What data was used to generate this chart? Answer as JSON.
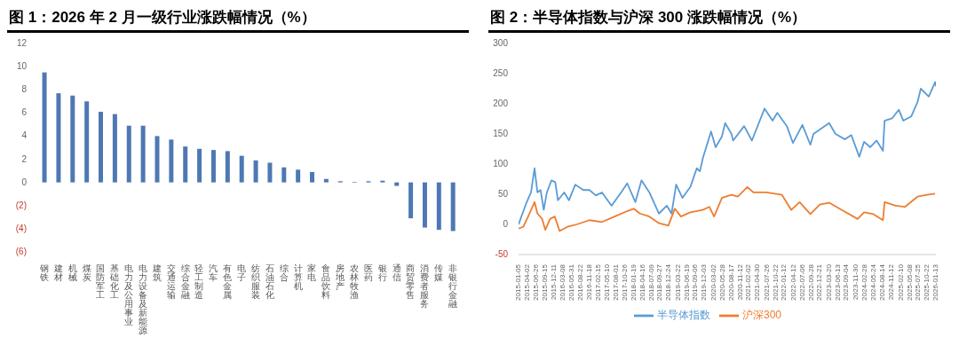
{
  "chart_data": [
    {
      "type": "bar",
      "title": "图 1：2026 年 2 月一级行业涨跌幅情况（%）",
      "categories": [
        "钢铁",
        "建材",
        "机械",
        "煤炭",
        "国防军工",
        "基础化工",
        "电力及公用事业",
        "电力设备及新能源",
        "建筑",
        "交通运输",
        "综合金融",
        "轻工制造",
        "汽车",
        "有色金属",
        "电子",
        "纺织服装",
        "石油石化",
        "综合",
        "计算机",
        "家电",
        "食品饮料",
        "房地产",
        "农林牧渔",
        "医药",
        "银行",
        "通信",
        "商贸零售",
        "消费者服务",
        "传媒",
        "非银行金融"
      ],
      "values": [
        9.5,
        7.7,
        7.5,
        7.0,
        6.1,
        5.9,
        4.9,
        4.9,
        4.0,
        3.7,
        3.1,
        2.9,
        2.8,
        2.7,
        2.3,
        1.9,
        1.7,
        1.3,
        1.1,
        0.9,
        0.3,
        0.1,
        0.05,
        0.1,
        0.15,
        -0.3,
        -3.1,
        -3.9,
        -4.1,
        -4.2
      ],
      "color": "#4e78b4",
      "ylim": [
        -6,
        12
      ],
      "yticks": [
        {
          "value": -6,
          "label": "(6)"
        },
        {
          "value": -4,
          "label": "(4)"
        },
        {
          "value": -2,
          "label": "(2)"
        },
        0,
        2,
        4,
        6,
        8,
        10,
        12
      ],
      "grid": false
    },
    {
      "type": "line",
      "title": "图 2：半导体指数与沪深 300 涨跌幅情况（%）",
      "series": [
        {
          "name": "半导体指数",
          "color": "#5b9bd5",
          "x": [
            "2015-01-05",
            "2015-03-20",
            "2015-05-05",
            "2015-06-08",
            "2015-07-06",
            "2015-08-05",
            "2015-09-05",
            "2015-10-05",
            "2015-11-18",
            "2015-12-25",
            "2016-01-20",
            "2016-03-20",
            "2016-05-05",
            "2016-07-05",
            "2016-09-20",
            "2016-11-18",
            "2017-01-20",
            "2017-03-20",
            "2017-06-20",
            "2017-09-20",
            "2017-11-18",
            "2018-02-05",
            "2018-04-05",
            "2018-06-20",
            "2018-09-20",
            "2018-12-05",
            "2019-01-20",
            "2019-03-05",
            "2019-05-05",
            "2019-07-20",
            "2019-09-20",
            "2019-10-20",
            "2019-11-18",
            "2020-02-05",
            "2020-03-20",
            "2020-05-20",
            "2020-06-20",
            "2020-08-20",
            "2020-09-05",
            "2020-12-20",
            "2021-03-05",
            "2021-07-05",
            "2021-09-20",
            "2021-11-05",
            "2022-02-05",
            "2022-04-05",
            "2022-07-05",
            "2022-09-20",
            "2022-10-20",
            "2023-03-20",
            "2023-05-20",
            "2023-08-20",
            "2023-10-20",
            "2024-01-05",
            "2024-02-20",
            "2024-04-20",
            "2024-06-20",
            "2024-08-20",
            "2024-09-05",
            "2024-11-18",
            "2025-01-20",
            "2025-03-05",
            "2025-05-20",
            "2025-07-20",
            "2025-08-20",
            "2025-11-05",
            "2026-01-05",
            "2026-01-13"
          ],
          "values": [
            0,
            35,
            53,
            93,
            53,
            57,
            24,
            53,
            73,
            70,
            40,
            53,
            40,
            66,
            57,
            57,
            48,
            53,
            31,
            53,
            68,
            37,
            73,
            53,
            18,
            31,
            18,
            66,
            44,
            62,
            93,
            88,
            110,
            154,
            128,
            146,
            168,
            150,
            139,
            163,
            139,
            192,
            172,
            185,
            163,
            135,
            165,
            132,
            150,
            168,
            150,
            141,
            148,
            112,
            137,
            128,
            139,
            122,
            172,
            176,
            190,
            172,
            179,
            203,
            225,
            212,
            236,
            229
          ]
        },
        {
          "name": "沪深300",
          "color": "#ed7d31",
          "x": [
            "2015-01-05",
            "2015-02-20",
            "2015-04-20",
            "2015-06-08",
            "2015-07-06",
            "2015-08-20",
            "2015-09-20",
            "2015-11-05",
            "2015-12-20",
            "2016-02-05",
            "2016-04-20",
            "2016-07-20",
            "2016-11-18",
            "2017-03-20",
            "2017-07-20",
            "2017-11-18",
            "2018-01-20",
            "2018-03-20",
            "2018-06-20",
            "2018-09-20",
            "2018-12-20",
            "2019-02-20",
            "2019-04-20",
            "2019-07-20",
            "2019-11-18",
            "2020-01-20",
            "2020-03-05",
            "2020-05-20",
            "2020-08-20",
            "2020-10-20",
            "2021-01-20",
            "2021-03-20",
            "2021-07-20",
            "2021-12-20",
            "2022-03-20",
            "2022-06-08",
            "2022-09-20",
            "2022-12-20",
            "2023-03-20",
            "2023-07-20",
            "2023-12-20",
            "2024-02-20",
            "2024-05-20",
            "2024-08-20",
            "2024-09-05",
            "2024-12-20",
            "2025-03-20",
            "2025-07-20",
            "2025-10-20",
            "2026-01-05"
          ],
          "values": [
            -7,
            -4,
            18,
            37,
            18,
            9,
            -9,
            9,
            13,
            -11,
            -4,
            0,
            7,
            4,
            13,
            22,
            26,
            18,
            13,
            2,
            -2,
            26,
            13,
            20,
            24,
            29,
            13,
            44,
            49,
            46,
            62,
            53,
            53,
            49,
            24,
            37,
            17,
            33,
            36,
            24,
            9,
            20,
            17,
            7,
            37,
            31,
            29,
            46,
            49,
            51
          ]
        }
      ],
      "xlim": [
        "2015-01-05",
        "2026-01-13"
      ],
      "xticks": [
        "2015-01-05",
        "2015-04-02",
        "2015-06-26",
        "2015-09-15",
        "2015-12-11",
        "2016-03-08",
        "2016-05-31",
        "2016-08-22",
        "2016-11-18",
        "2017-02-15",
        "2017-05-10",
        "2017-08-01",
        "2017-10-26",
        "2018-01-19",
        "2018-04-16",
        "2018-07-09",
        "2018-09-27",
        "2018-12-24",
        "2019-03-22",
        "2019-06-19",
        "2019-09-06",
        "2019-12-03",
        "2020-03-02",
        "2020-05-28",
        "2020-08-17",
        "2020-11-12",
        "2021-02-02",
        "2021-04-30",
        "2021-07-26",
        "2021-10-22",
        "2022-01-12",
        "2022-04-12",
        "2022-07-06",
        "2022-09-28",
        "2022-12-21",
        "2023-03-20",
        "2023-06-13",
        "2023-09-04",
        "2023-11-30",
        "2024-02-28",
        "2024-05-24",
        "2024-08-14",
        "2024-11-12",
        "2025-02-10",
        "2025-05-08",
        "2025-07-25",
        "2025-10-22",
        "2026-01-13"
      ],
      "ylim": [
        -50,
        300
      ],
      "yticks": [
        -50,
        0,
        50,
        100,
        150,
        200,
        250,
        300
      ],
      "grid": false,
      "legend": "bottom",
      "marker": "none",
      "line_style": "solid"
    }
  ]
}
